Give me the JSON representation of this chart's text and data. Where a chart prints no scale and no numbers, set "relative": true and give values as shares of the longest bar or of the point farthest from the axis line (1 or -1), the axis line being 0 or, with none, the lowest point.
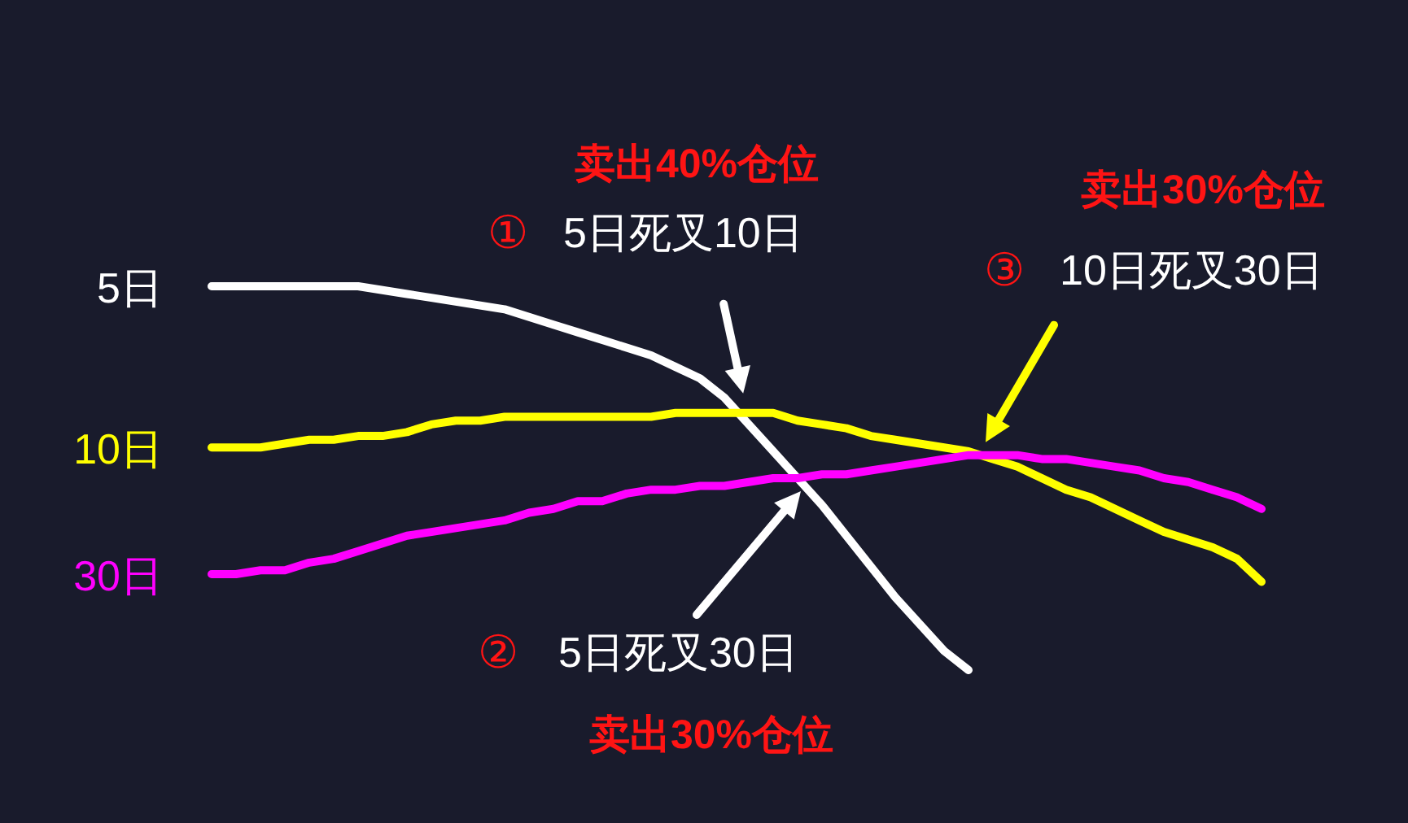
{
  "chart_data": {
    "type": "line",
    "relative": true,
    "categories": [
      null,
      null,
      null,
      null,
      null,
      null,
      null,
      null,
      null,
      null,
      null,
      null,
      null,
      null,
      null,
      null,
      null,
      null,
      null,
      null,
      null,
      null,
      null,
      null,
      null,
      null,
      null,
      null,
      null,
      null,
      null,
      null,
      null,
      null,
      null,
      null,
      null,
      null,
      null,
      null,
      null,
      null,
      null,
      null
    ],
    "series": [
      {
        "name": "5日",
        "color": "#ffffff",
        "values": [
          1.0,
          1.0,
          1.0,
          1.0,
          1.0,
          1.0,
          1.0,
          0.99,
          0.98,
          0.97,
          0.96,
          0.95,
          0.94,
          0.92,
          0.9,
          0.88,
          0.86,
          0.84,
          0.82,
          0.79,
          0.76,
          0.71,
          0.64,
          0.57,
          0.5,
          0.43,
          0.35,
          0.27,
          0.19,
          0.12,
          0.05,
          0,
          null,
          null,
          null,
          null,
          null,
          null,
          null,
          null,
          null,
          null,
          null,
          null
        ]
      },
      {
        "name": "10日",
        "color": "#ffff00",
        "values": [
          0.58,
          0.58,
          0.58,
          0.59,
          0.6,
          0.6,
          0.61,
          0.61,
          0.62,
          0.64,
          0.65,
          0.65,
          0.66,
          0.66,
          0.66,
          0.66,
          0.66,
          0.66,
          0.66,
          0.67,
          0.67,
          0.67,
          0.67,
          0.67,
          0.65,
          0.64,
          0.63,
          0.61,
          0.6,
          0.59,
          0.58,
          0.57,
          0.55,
          0.53,
          0.5,
          0.47,
          0.45,
          0.42,
          0.39,
          0.36,
          0.34,
          0.32,
          0.29,
          0.23
        ]
      },
      {
        "name": "30日",
        "color": "#ff00ff",
        "values": [
          0.25,
          0.25,
          0.26,
          0.26,
          0.28,
          0.29,
          0.31,
          0.33,
          0.35,
          0.36,
          0.37,
          0.38,
          0.39,
          0.41,
          0.42,
          0.44,
          0.44,
          0.46,
          0.47,
          0.47,
          0.48,
          0.48,
          0.49,
          0.5,
          0.5,
          0.51,
          0.51,
          0.52,
          0.53,
          0.54,
          0.55,
          0.56,
          0.56,
          0.56,
          0.55,
          0.55,
          0.54,
          0.53,
          0.52,
          0.5,
          0.49,
          0.47,
          0.45,
          0.42
        ]
      }
    ],
    "annotations": [
      "卖出40%仓位",
      "①",
      "5日死叉10日",
      "卖出30%仓位",
      "③",
      "10日死叉30日",
      "②",
      "5日死叉30日",
      "卖出30%仓位"
    ]
  }
}
